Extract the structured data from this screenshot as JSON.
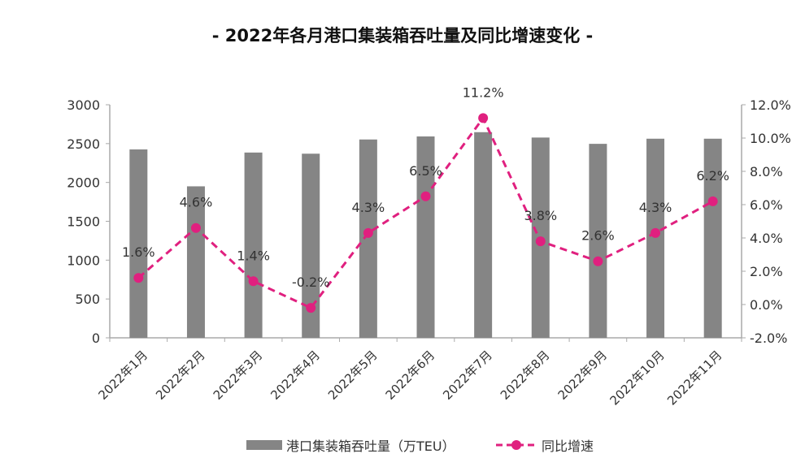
{
  "chart_data": {
    "type": "bar+line",
    "title": "- 2022年各月港口集装箱吞吐量及同比增速变化 -",
    "categories": [
      "2022年1月",
      "2022年2月",
      "2022年3月",
      "2022年4月",
      "2022年5月",
      "2022年6月",
      "2022年7月",
      "2022年8月",
      "2022年9月",
      "2022年10月",
      "2022年11月"
    ],
    "series": [
      {
        "name": "港口集装箱吞吐量（万TEU）",
        "type": "bar",
        "axis": "left",
        "color": "#858585",
        "values": [
          2425,
          1950,
          2385,
          2370,
          2553,
          2592,
          2647,
          2578,
          2497,
          2563,
          2563
        ]
      },
      {
        "name": "同比增速",
        "type": "line",
        "axis": "right",
        "color": "#e0207f",
        "style": "dashed",
        "values": [
          1.6,
          4.6,
          1.4,
          -0.2,
          4.3,
          6.5,
          11.2,
          3.8,
          2.6,
          4.3,
          6.2
        ],
        "labels": [
          "1.6%",
          "4.6%",
          "1.4%",
          "-0.2%",
          "4.3%",
          "6.5%",
          "11.2%",
          "3.8%",
          "2.6%",
          "4.3%",
          "6.2%"
        ]
      }
    ],
    "left_axis": {
      "ylim": [
        0,
        3000
      ],
      "ticks": [
        "0",
        "500",
        "1000",
        "1500",
        "2000",
        "2500",
        "3000"
      ]
    },
    "right_axis": {
      "ylim": [
        -2,
        12
      ],
      "ticks": [
        "-2.0%",
        "0.0%",
        "2.0%",
        "4.0%",
        "6.0%",
        "8.0%",
        "10.0%",
        "12.0%"
      ]
    },
    "grid": false,
    "legend": "bottom"
  }
}
